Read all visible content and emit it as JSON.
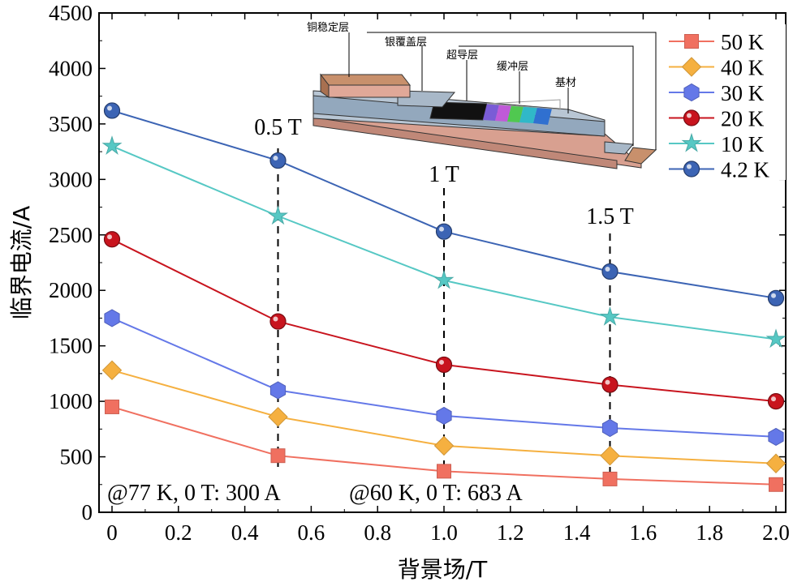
{
  "chart_data": {
    "type": "line",
    "xlabel": "背景场/T",
    "ylabel": "临界电流/A",
    "xlim": [
      0,
      2.0
    ],
    "ylim": [
      0,
      4500
    ],
    "x_ticks": [
      "0",
      "0.2",
      "0.4",
      "0.6",
      "0.8",
      "1.0",
      "1.2",
      "1.4",
      "1.6",
      "1.8",
      "2.0"
    ],
    "y_ticks": [
      "0",
      "500",
      "1000",
      "1500",
      "2000",
      "2500",
      "3000",
      "3500",
      "4000",
      "4500"
    ],
    "x": [
      0,
      0.5,
      1.0,
      1.5,
      2.0
    ],
    "series": [
      {
        "name": "50 K",
        "color": "#f07060",
        "marker": "square",
        "values": [
          950,
          510,
          370,
          300,
          250
        ]
      },
      {
        "name": "40 K",
        "color": "#f5b040",
        "marker": "diamond",
        "values": [
          1280,
          860,
          600,
          510,
          440
        ]
      },
      {
        "name": "30 K",
        "color": "#6478e8",
        "marker": "hexagon",
        "values": [
          1750,
          1100,
          870,
          760,
          680
        ]
      },
      {
        "name": "20 K",
        "color": "#c8141e",
        "marker": "ball",
        "values": [
          2460,
          1720,
          1330,
          1150,
          1000
        ]
      },
      {
        "name": "10 K",
        "color": "#56c8c4",
        "marker": "star",
        "values": [
          3300,
          2670,
          2090,
          1760,
          1560
        ]
      },
      {
        "name": "4.2 K",
        "color": "#3c64b4",
        "marker": "ball",
        "values": [
          3620,
          3170,
          2530,
          2170,
          1930
        ]
      }
    ],
    "legend_position": "top-right",
    "field_markers": [
      {
        "x": 0.5,
        "label": "0.5 T"
      },
      {
        "x": 1.0,
        "label": "1 T"
      },
      {
        "x": 1.5,
        "label": "1.5 T"
      }
    ],
    "annotations": [
      "@77 K, 0 T: 300 A",
      "@60 K, 0 T: 683 A"
    ],
    "inset_labels": [
      "铜稳定层",
      "银覆盖层",
      "超导层",
      "缓冲层",
      "基材"
    ]
  }
}
